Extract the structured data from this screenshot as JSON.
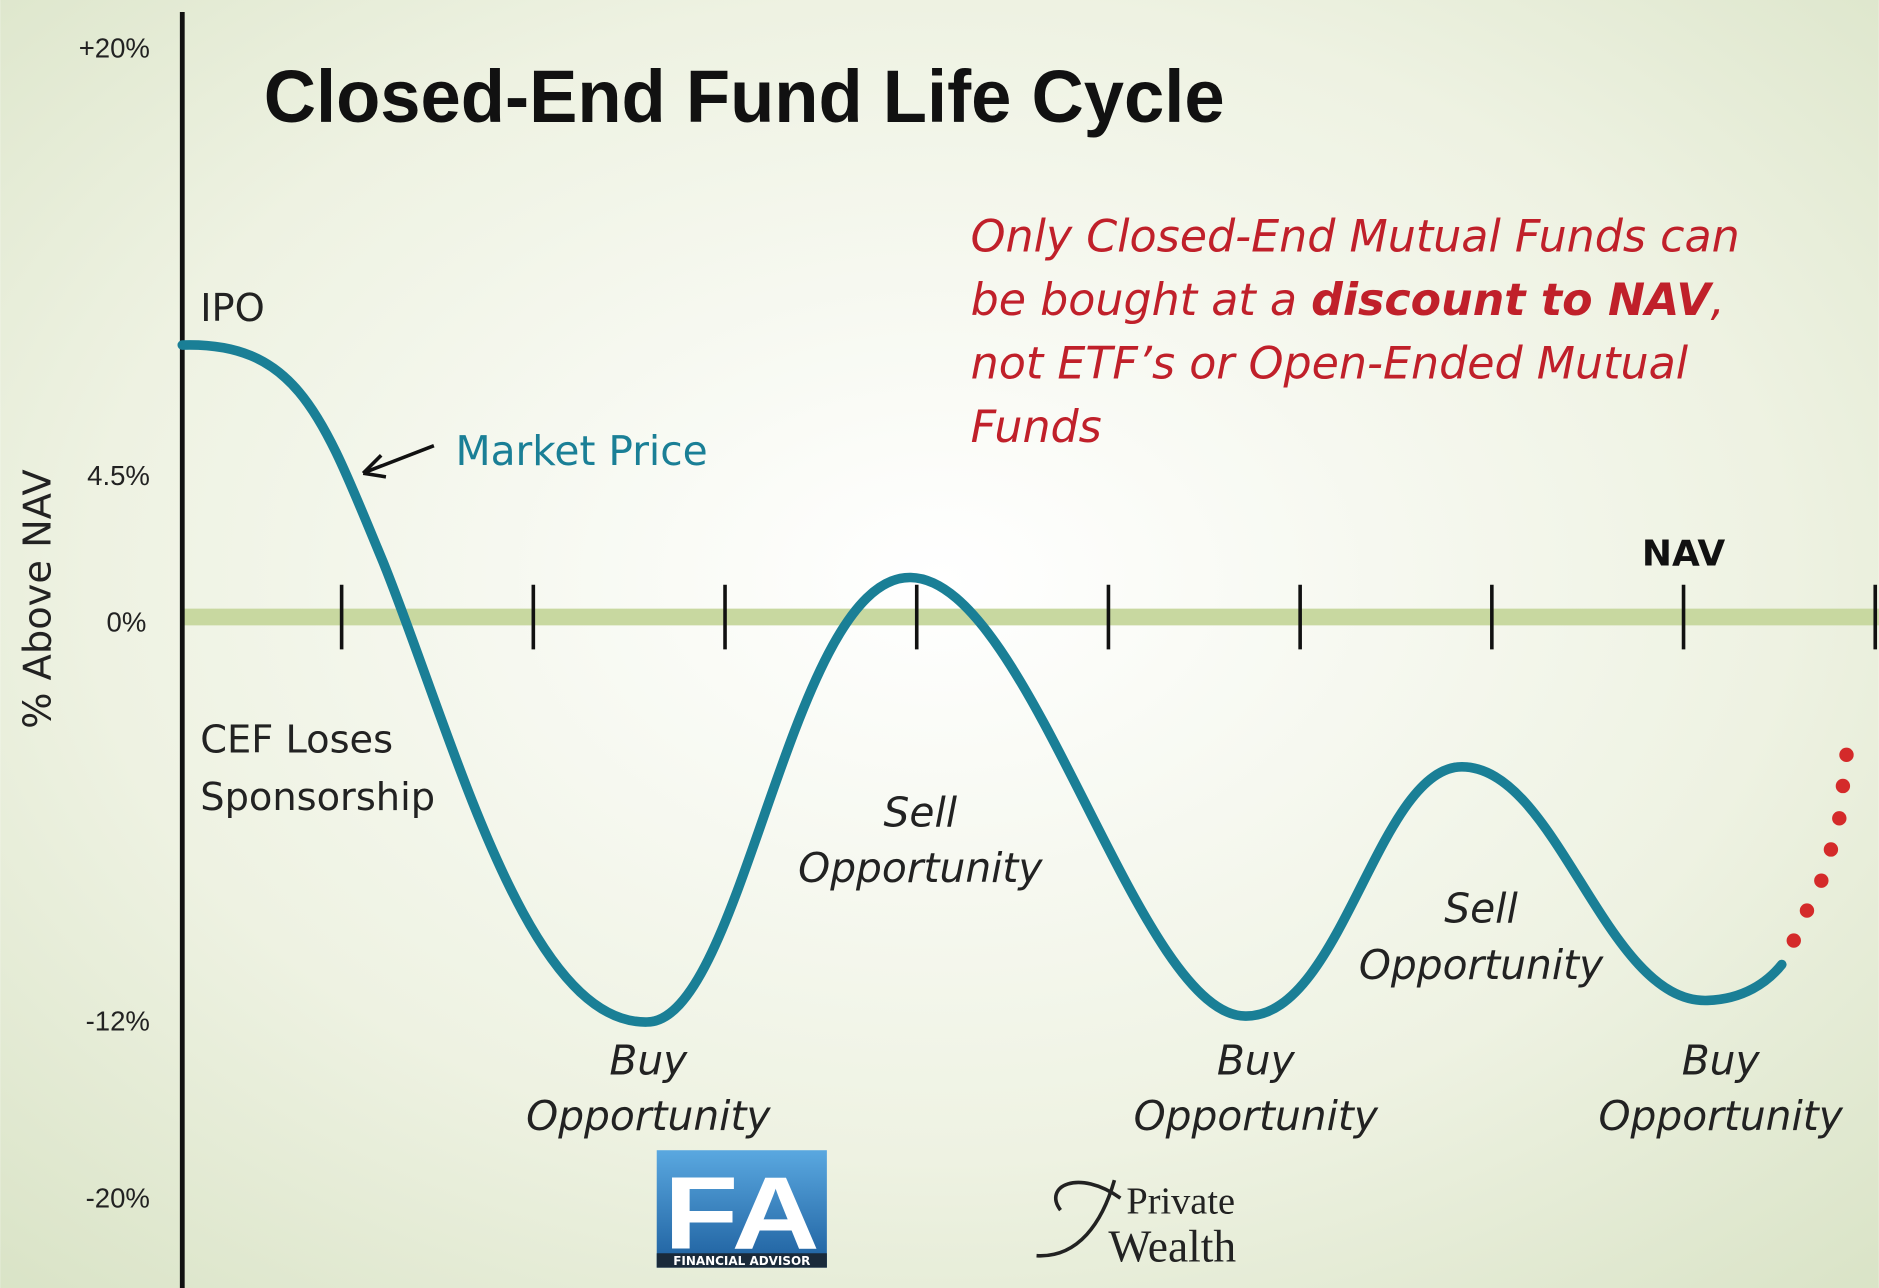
{
  "title": "Closed-End Fund Life Cycle",
  "y_axis": {
    "label": "% Above NAV",
    "ticks": [
      "+20%",
      "4.5%",
      "0%",
      "-12%",
      "-20%"
    ]
  },
  "nav_label": "NAV",
  "note": {
    "line1": "Only Closed-End Mutual Funds can",
    "line2": {
      "before": "be bought at a ",
      "bold": "discount to NAV",
      "after": ","
    },
    "line3": "not ETF’s or Open-Ended Mutual",
    "line4": "Funds"
  },
  "labels": {
    "ipo": "IPO",
    "market_price": "Market Price",
    "cef_loses": [
      "CEF Loses",
      "Sponsorship"
    ],
    "sell_1": [
      "Sell",
      "Opportunity"
    ],
    "sell_2": [
      "Sell",
      "Opportunity"
    ],
    "buy_1": [
      "Buy",
      "Opportunity"
    ],
    "buy_2": [
      "Buy",
      "Opportunity"
    ],
    "buy_3": [
      "Buy",
      "Opportunity"
    ]
  },
  "logos": {
    "fa": "FA",
    "fa_sub": "FINANCIAL ADVISOR",
    "pw_1": "Private",
    "pw_2": "Wealth"
  }
}
